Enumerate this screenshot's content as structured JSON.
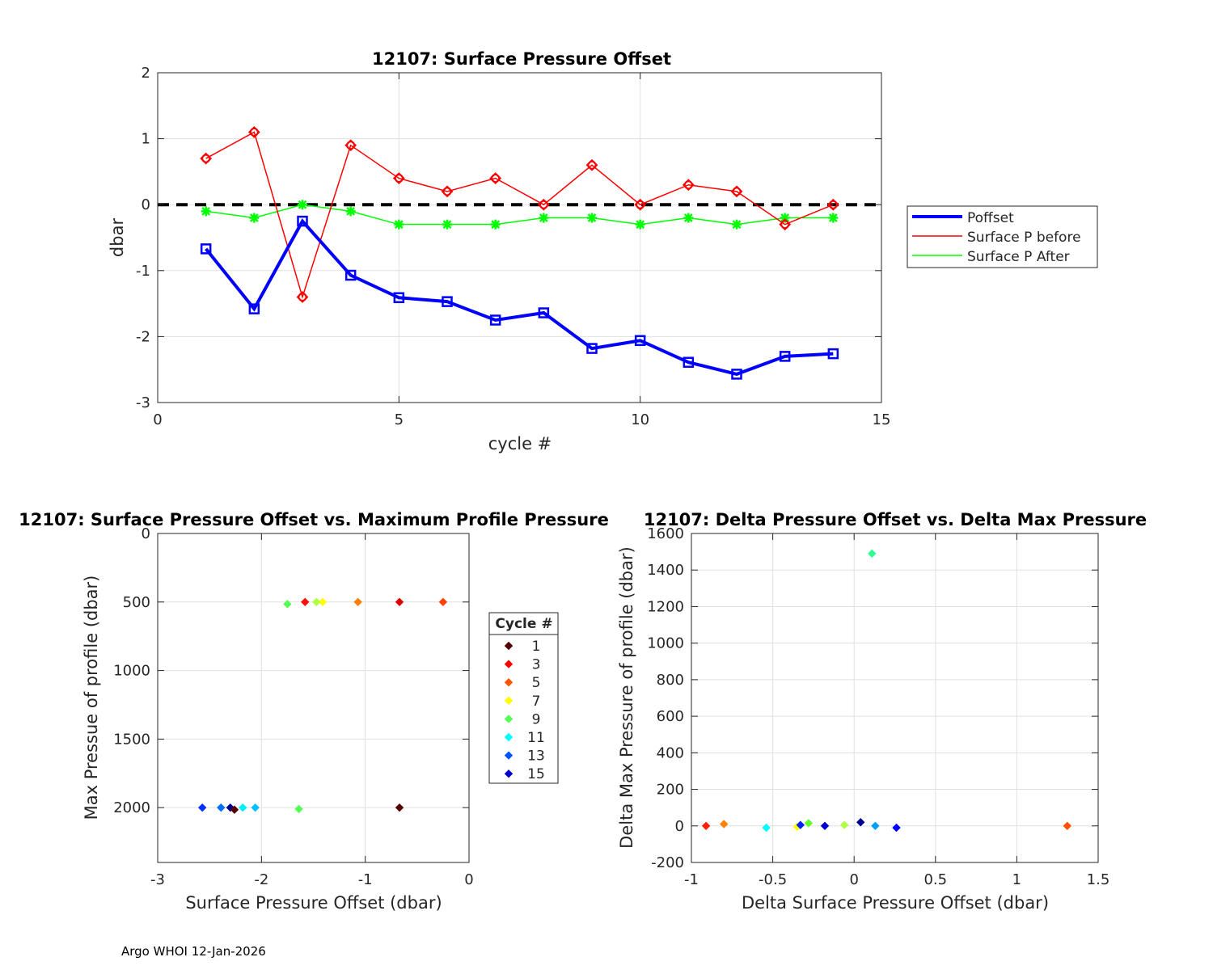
{
  "footer": "Argo WHOI 12-Jan-2026",
  "chart_data": [
    {
      "type": "line",
      "title": "12107: Surface Pressure Offset",
      "xlabel": "cycle #",
      "ylabel": "dbar",
      "xlim": [
        0,
        15
      ],
      "ylim": [
        -3,
        2
      ],
      "xticks": [
        0,
        5,
        10,
        15
      ],
      "yticks": [
        -3,
        -2,
        -1,
        0,
        1,
        2
      ],
      "grid": true,
      "legend_position": "right",
      "zero_line": 0,
      "series": [
        {
          "name": "Poffset",
          "color": "#0000ff",
          "marker": "square",
          "x": [
            1,
            2,
            3,
            4,
            5,
            6,
            7,
            8,
            9,
            10,
            11,
            12,
            13,
            14
          ],
          "y": [
            -0.67,
            -1.58,
            -0.25,
            -1.07,
            -1.41,
            -1.47,
            -1.75,
            -1.64,
            -2.18,
            -2.06,
            -2.39,
            -2.57,
            -2.3,
            -2.26
          ]
        },
        {
          "name": "Surface P before",
          "color": "#ff0000",
          "marker": "diamond",
          "x": [
            1,
            2,
            3,
            4,
            5,
            6,
            7,
            8,
            9,
            10,
            11,
            12,
            13,
            14
          ],
          "y": [
            0.7,
            1.1,
            -1.4,
            0.9,
            0.4,
            0.2,
            0.4,
            0.0,
            0.6,
            0.0,
            0.3,
            0.2,
            -0.3,
            0.0
          ]
        },
        {
          "name": "Surface P After",
          "color": "#00ff00",
          "marker": "star",
          "x": [
            1,
            2,
            3,
            4,
            5,
            6,
            7,
            8,
            9,
            10,
            11,
            12,
            13,
            14
          ],
          "y": [
            -0.1,
            -0.2,
            0.0,
            -0.1,
            -0.3,
            -0.3,
            -0.3,
            -0.2,
            -0.2,
            -0.3,
            -0.2,
            -0.3,
            -0.2,
            -0.2
          ]
        }
      ]
    },
    {
      "type": "scatter",
      "title": "12107: Surface Pressure Offset vs. Maximum Profile Pressure",
      "xlabel": "Surface Pressure Offset (dbar)",
      "ylabel": "Max Pressue of profile (dbar)",
      "xlim": [
        -3,
        0
      ],
      "ylim": [
        0,
        2400
      ],
      "y_reversed": true,
      "xticks": [
        -3,
        -2,
        -1,
        0
      ],
      "yticks": [
        0,
        500,
        1000,
        1500,
        2000
      ],
      "grid": true,
      "legend_title": "Cycle #",
      "legend_labels": [
        "1",
        "3",
        "5",
        "7",
        "9",
        "11",
        "13",
        "15"
      ],
      "legend_colors": [
        "#550000",
        "#ff0000",
        "#ff5500",
        "#ffff00",
        "#55ff55",
        "#00ffff",
        "#0055ff",
        "#0000cc"
      ],
      "points": [
        {
          "x": -0.67,
          "y": 2000,
          "color": "#550000"
        },
        {
          "x": -1.58,
          "y": 500,
          "color": "#ff1000"
        },
        {
          "x": -0.25,
          "y": 500,
          "color": "#ff4000"
        },
        {
          "x": -1.07,
          "y": 500,
          "color": "#ff8000"
        },
        {
          "x": -1.41,
          "y": 500,
          "color": "#ffff00"
        },
        {
          "x": -1.47,
          "y": 500,
          "color": "#b0ff40"
        },
        {
          "x": -1.75,
          "y": 515,
          "color": "#55ff55"
        },
        {
          "x": -0.67,
          "y": 500,
          "color": "#dd0000"
        },
        {
          "x": -2.18,
          "y": 2000,
          "color": "#00f0ff"
        },
        {
          "x": -2.06,
          "y": 2000,
          "color": "#00c0ff"
        },
        {
          "x": -2.39,
          "y": 2000,
          "color": "#0070ff"
        },
        {
          "x": -2.57,
          "y": 2000,
          "color": "#0030ff"
        },
        {
          "x": -2.3,
          "y": 2000,
          "color": "#000090"
        },
        {
          "x": -2.26,
          "y": 2015,
          "color": "#550000"
        },
        {
          "x": -1.64,
          "y": 2010,
          "color": "#55ff55"
        }
      ]
    },
    {
      "type": "scatter",
      "title": "12107: Delta Pressure Offset vs. Delta Max Pressure",
      "xlabel": "Delta Surface Pressure Offset (dbar)",
      "ylabel": "Delta Max Pressure of profile (dbar)",
      "xlim": [
        -1,
        1.5
      ],
      "ylim": [
        -200,
        1600
      ],
      "xticks": [
        -1,
        -0.5,
        0,
        0.5,
        1,
        1.5
      ],
      "yticks": [
        -200,
        0,
        200,
        400,
        600,
        800,
        1000,
        1200,
        1400,
        1600
      ],
      "grid": true,
      "points": [
        {
          "x": -0.91,
          "y": 0,
          "color": "#ff2000"
        },
        {
          "x": -0.8,
          "y": 10,
          "color": "#ff8000"
        },
        {
          "x": 1.31,
          "y": 0,
          "color": "#ff5000"
        },
        {
          "x": -0.54,
          "y": -10,
          "color": "#00ffff"
        },
        {
          "x": -0.35,
          "y": -5,
          "color": "#ffff00"
        },
        {
          "x": -0.33,
          "y": 5,
          "color": "#0020ff"
        },
        {
          "x": -0.28,
          "y": 15,
          "color": "#60ff30"
        },
        {
          "x": -0.18,
          "y": 0,
          "color": "#0000d0"
        },
        {
          "x": -0.06,
          "y": 5,
          "color": "#b0ff40"
        },
        {
          "x": 0.04,
          "y": 20,
          "color": "#000090"
        },
        {
          "x": 0.11,
          "y": 1490,
          "color": "#30ff90"
        },
        {
          "x": 0.13,
          "y": 0,
          "color": "#00a0ff"
        },
        {
          "x": 0.26,
          "y": -10,
          "color": "#0000ff"
        }
      ]
    }
  ]
}
